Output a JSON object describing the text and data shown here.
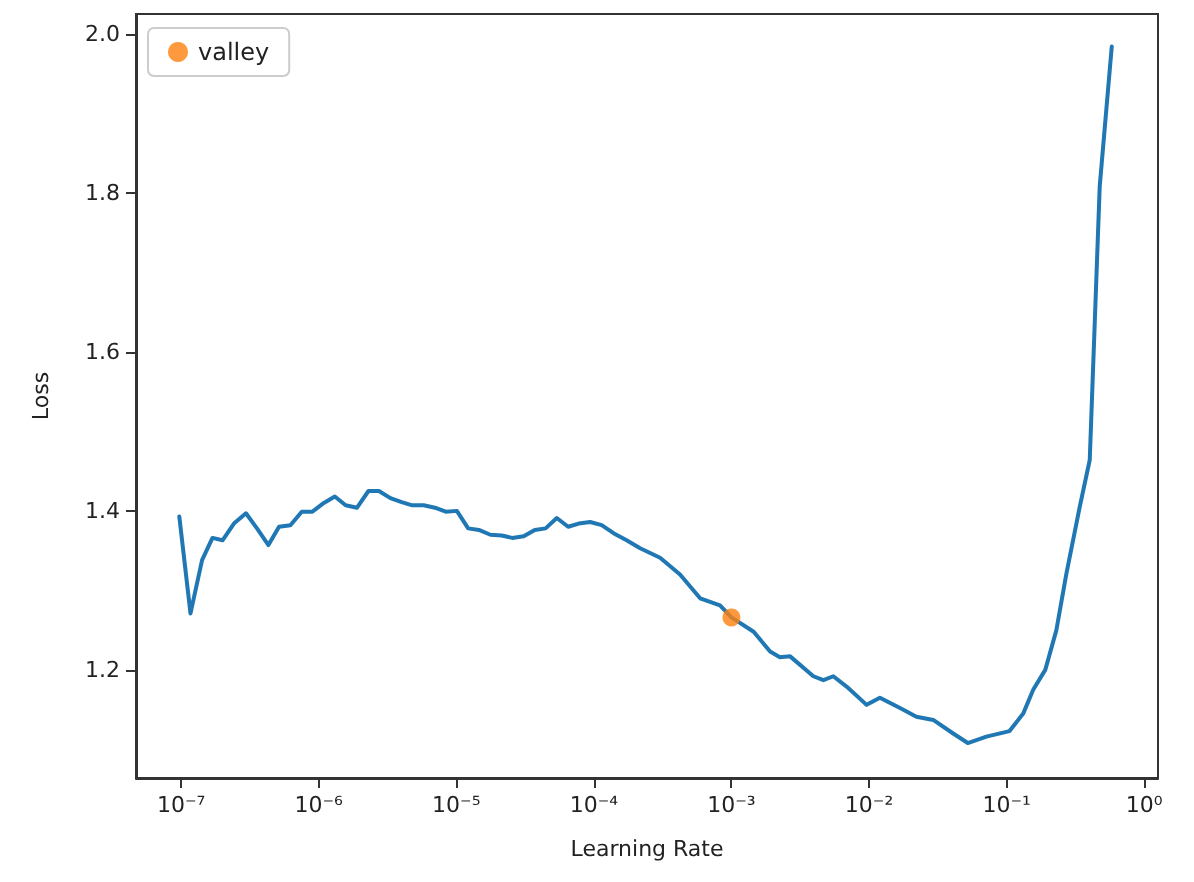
{
  "chart_data": {
    "type": "line",
    "xlabel": "Learning Rate",
    "ylabel": "Loss",
    "log": "x",
    "grid": false,
    "legend": "top left",
    "xlim": [
      4.7e-08,
      1.26
    ],
    "ylim": [
      1.064,
      2.025
    ],
    "xticks": [
      {
        "value": 1e-07,
        "label": "10⁻⁷"
      },
      {
        "value": 1e-06,
        "label": "10⁻⁶"
      },
      {
        "value": 1e-05,
        "label": "10⁻⁵"
      },
      {
        "value": 0.0001,
        "label": "10⁻⁴"
      },
      {
        "value": 0.001,
        "label": "10⁻³"
      },
      {
        "value": 0.01,
        "label": "10⁻²"
      },
      {
        "value": 0.1,
        "label": "10⁻¹"
      },
      {
        "value": 1,
        "label": "10⁰"
      }
    ],
    "yticks": [
      1.2,
      1.4,
      1.6,
      1.8,
      {
        "value": 2,
        "label": "2.0"
      }
    ],
    "series": [
      {
        "color": "#1f77b4",
        "x": [
          9.7e-08,
          1.17e-07,
          1.42e-07,
          1.69e-07,
          2e-07,
          2.42e-07,
          2.96e-07,
          3.56e-07,
          4.31e-07,
          5.15e-07,
          6.23e-07,
          7.53e-07,
          9e-07,
          1.09e-06,
          1.31e-06,
          1.57e-06,
          1.9e-06,
          2.3e-06,
          2.74e-06,
          3.32e-06,
          4.01e-06,
          4.79e-06,
          5.79e-06,
          7e-06,
          8.38e-06,
          1.01e-05,
          1.22e-05,
          1.46e-05,
          1.77e-05,
          2.14e-05,
          2.55e-05,
          3.09e-05,
          3.72e-05,
          4.46e-05,
          5.38e-05,
          6.5e-05,
          7.76e-05,
          9.4e-05,
          0.000114,
          0.000139,
          0.000173,
          0.000217,
          0.000303,
          0.000423,
          0.000592,
          0.000826,
          0.001,
          0.00145,
          0.00191,
          0.00225,
          0.00267,
          0.00394,
          0.00466,
          0.0055,
          0.00687,
          0.0096,
          0.012,
          0.0168,
          0.0221,
          0.0293,
          0.0409,
          0.0522,
          0.0713,
          0.105,
          0.132,
          0.156,
          0.191,
          0.23,
          0.272,
          0.34,
          0.402,
          0.475,
          0.581
        ],
        "values": [
          1.393,
          1.271,
          1.338,
          1.366,
          1.363,
          1.384,
          1.397,
          1.378,
          1.357,
          1.38,
          1.382,
          1.399,
          1.399,
          1.41,
          1.418,
          1.407,
          1.404,
          1.425,
          1.425,
          1.416,
          1.411,
          1.407,
          1.407,
          1.404,
          1.399,
          1.4,
          1.378,
          1.376,
          1.37,
          1.369,
          1.366,
          1.368,
          1.376,
          1.378,
          1.391,
          1.38,
          1.384,
          1.386,
          1.382,
          1.372,
          1.363,
          1.353,
          1.341,
          1.32,
          1.29,
          1.281,
          1.266,
          1.248,
          1.223,
          1.216,
          1.217,
          1.192,
          1.187,
          1.192,
          1.179,
          1.156,
          1.165,
          1.152,
          1.141,
          1.137,
          1.12,
          1.108,
          1.116,
          1.123,
          1.145,
          1.175,
          1.2,
          1.25,
          1.321,
          1.405,
          1.464,
          1.808,
          1.984
        ]
      },
      {
        "type": "scatter",
        "name": "valley",
        "color": "#ff7f0e",
        "marker": "circle",
        "x": [
          0.001
        ],
        "values": [
          1.266
        ]
      }
    ]
  }
}
